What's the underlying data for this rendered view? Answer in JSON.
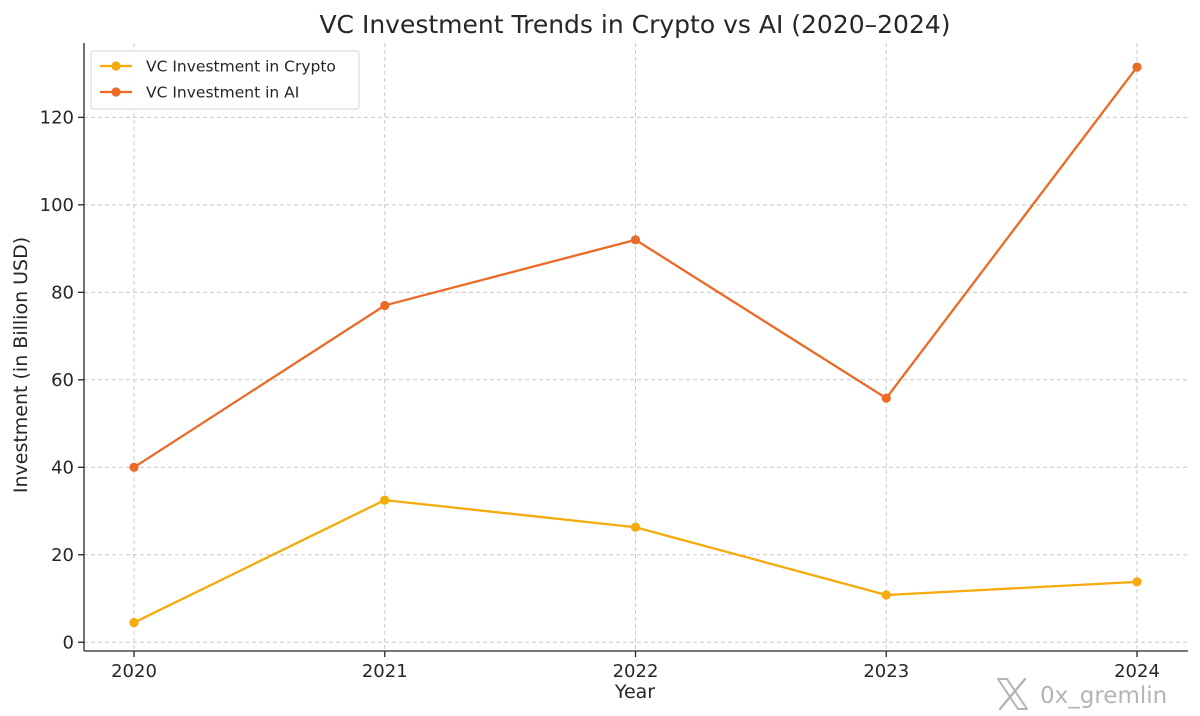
{
  "chart_data": {
    "type": "line",
    "title": "VC Investment Trends in Crypto vs AI (2020–2024)",
    "xlabel": "Year",
    "ylabel": "Investment (in Billion USD)",
    "categories": [
      "2020",
      "2021",
      "2022",
      "2023",
      "2024"
    ],
    "yticks": [
      "0",
      "20",
      "40",
      "60",
      "80",
      "100",
      "120"
    ],
    "ylim": [
      -2,
      137
    ],
    "grid": true,
    "legend_position": "top-left",
    "series": [
      {
        "name": "VC Investment in Crypto",
        "values": [
          4.5,
          32.5,
          26.3,
          10.8,
          13.8
        ],
        "color": "#f5ab0b"
      },
      {
        "name": "VC Investment in AI",
        "values": [
          40.0,
          77.0,
          92.0,
          55.8,
          131.5
        ],
        "color": "#ea6a26"
      }
    ]
  },
  "watermark": {
    "icon": "x-logo-icon",
    "handle": "0x_gremlin",
    "color": "#b4b4b4"
  }
}
